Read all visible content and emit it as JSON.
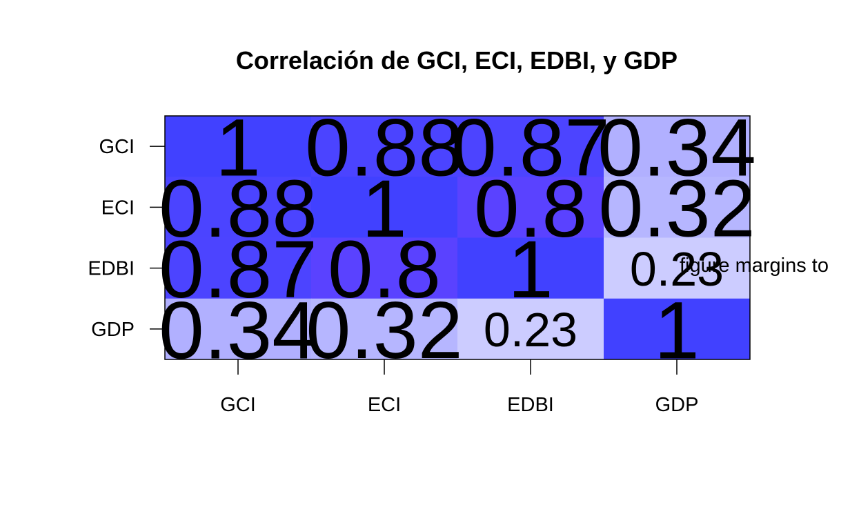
{
  "chart_data": {
    "type": "heatmap",
    "title": "Correlación de GCI, ECI, EDBI, y GDP",
    "x_categories": [
      "GCI",
      "ECI",
      "EDBI",
      "GDP"
    ],
    "y_categories": [
      "GCI",
      "ECI",
      "EDBI",
      "GDP"
    ],
    "values": [
      [
        1,
        0.88,
        0.87,
        0.34
      ],
      [
        0.88,
        1,
        0.8,
        0.32
      ],
      [
        0.87,
        0.8,
        1,
        0.23
      ],
      [
        0.34,
        0.32,
        0.23,
        1
      ]
    ],
    "colors": [
      [
        "#4141ff",
        "#4b44ff",
        "#4c44ff",
        "#b1b0ff"
      ],
      [
        "#4b44ff",
        "#4141ff",
        "#5a42ff",
        "#b6b6ff"
      ],
      [
        "#4c44ff",
        "#5a42ff",
        "#4141ff",
        "#ccccff"
      ],
      [
        "#b1b0ff",
        "#b6b6ff",
        "#ccccff",
        "#4141ff"
      ]
    ],
    "annotation": "figure margins to"
  }
}
